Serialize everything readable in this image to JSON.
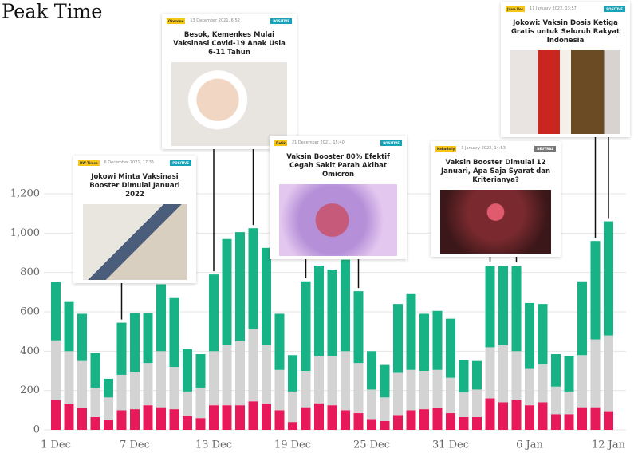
{
  "chart_data": {
    "type": "bar",
    "stacked": true,
    "title": "Peak Time",
    "categories": [
      "1 Dec",
      null,
      null,
      null,
      null,
      null,
      "7 Dec",
      null,
      null,
      null,
      null,
      null,
      "13 Dec",
      null,
      null,
      null,
      null,
      null,
      "19 Dec",
      null,
      null,
      null,
      null,
      null,
      "25 Dec",
      null,
      null,
      null,
      null,
      null,
      "31 Dec",
      null,
      null,
      null,
      null,
      null,
      "6 Jan",
      null,
      null,
      null,
      null,
      null,
      "12 Jan"
    ],
    "series": [
      {
        "color": "#e8195a",
        "values": [
          150,
          130,
          110,
          65,
          50,
          100,
          105,
          125,
          115,
          105,
          70,
          60,
          125,
          125,
          125,
          145,
          130,
          100,
          40,
          115,
          135,
          125,
          100,
          85,
          55,
          45,
          75,
          100,
          105,
          110,
          85,
          65,
          65,
          160,
          140,
          150,
          125,
          140,
          80,
          80,
          115,
          115,
          95
        ]
      },
      {
        "color": "#d3d3d3",
        "values": [
          305,
          270,
          240,
          150,
          115,
          180,
          190,
          215,
          285,
          215,
          125,
          155,
          275,
          305,
          325,
          370,
          300,
          205,
          155,
          185,
          240,
          250,
          300,
          255,
          150,
          120,
          215,
          205,
          195,
          195,
          180,
          125,
          140,
          260,
          290,
          250,
          185,
          195,
          140,
          115,
          265,
          345,
          385
        ]
      },
      {
        "color": "#17b386",
        "values": [
          295,
          250,
          240,
          175,
          95,
          265,
          300,
          255,
          340,
          350,
          215,
          170,
          390,
          540,
          555,
          510,
          495,
          285,
          185,
          455,
          460,
          440,
          465,
          365,
          195,
          165,
          350,
          385,
          290,
          300,
          300,
          165,
          145,
          415,
          405,
          435,
          335,
          305,
          165,
          180,
          375,
          500,
          580
        ]
      }
    ],
    "ylim": [
      0,
      1200
    ],
    "yticks": [
      0,
      200,
      400,
      600,
      800,
      {
        "value": 1000,
        "label": "1,000"
      },
      {
        "value": 1200,
        "label": "1,200"
      }
    ],
    "grid": true,
    "annotations": [
      {
        "source": "DW Times",
        "date": "6 December 2021, 17:35",
        "sentiment": "POSITIVE",
        "title": "Jokowi Minta Vaksinasi Booster Dimulai Januari 2022"
      },
      {
        "source": "Okezone",
        "date": "13 December 2021, 6:52",
        "sentiment": "POSITIVE",
        "title": "Besok, Kemenkes Mulai Vaksinasi Covid-19 Anak Usia 6-11 Tahun"
      },
      {
        "source": "Detik",
        "date": "21 December 2021, 15:40",
        "sentiment": "POSITIVE",
        "title": "Vaksin Booster 80% Efektif Cegah Sakit Parah Akibat Omicron"
      },
      {
        "source": "Kabadaily",
        "date": "3 January 2022, 14:53",
        "sentiment": "NEUTRAL",
        "title": "Vaksin Booster Dimulai 12 Januari, Apa Saja Syarat dan Kriterianya?"
      },
      {
        "source": "Jawa Pos",
        "date": "11 January 2022, 13:57",
        "sentiment": "POSITIVE",
        "title": "Jokowi: Vaksin Dosis Ketiga Gratis untuk Seluruh Rakyat Indonesia"
      }
    ]
  }
}
